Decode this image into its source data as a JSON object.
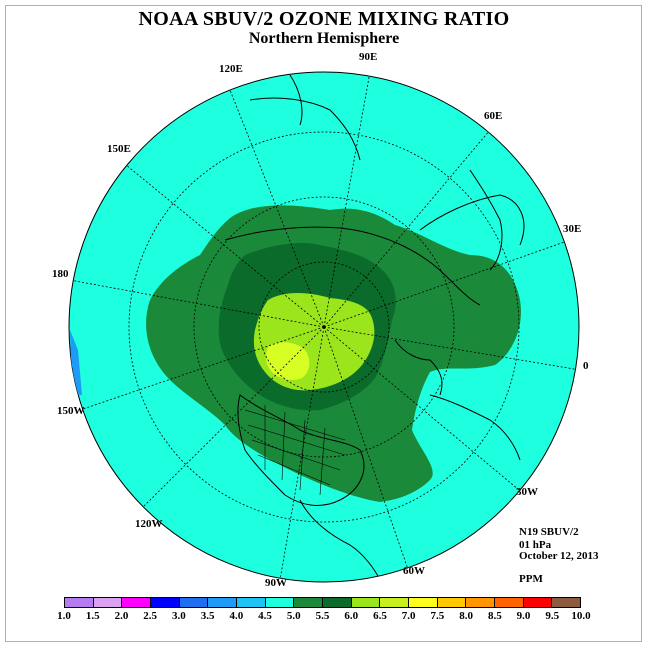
{
  "title": "NOAA SBUV/2 OZONE MIXING RATIO",
  "subtitle": "Northern Hemisphere",
  "meridian_labels": {
    "e90": "90E",
    "e120": "120E",
    "e60": "60E",
    "e150": "150E",
    "e30": "30E",
    "lon180": "180",
    "lon0": "0",
    "w150": "150W",
    "w30": "30W",
    "w120": "120W",
    "w60": "60W",
    "w90": "90W"
  },
  "info": {
    "instrument": "N19 SBUV/2",
    "level": "01 hPa",
    "date": "October 12, 2013",
    "units": "PPM"
  },
  "colors": {
    "background_cyan": "#1effdf",
    "green_5_5": "#1a8a3a",
    "green_6_0": "#0b6b2a",
    "yellowgreen_6_5": "#9be51c",
    "yellow_7_0": "#d8ff24"
  },
  "colorbar": {
    "ticks": [
      "1.0",
      "1.5",
      "2.0",
      "2.5",
      "3.0",
      "3.5",
      "4.0",
      "4.5",
      "5.0",
      "5.5",
      "6.0",
      "6.5",
      "7.0",
      "7.5",
      "8.0",
      "8.5",
      "9.0",
      "9.5",
      "10.0"
    ],
    "colors": [
      "#b47cf0",
      "#dca0f0",
      "#ff00ff",
      "#0000ff",
      "#1e6ef0",
      "#1e9bf5",
      "#1ec3f5",
      "#1effdf",
      "#1a8a3a",
      "#0b6b2a",
      "#9be51c",
      "#c8f01e",
      "#ffff1e",
      "#ffc800",
      "#ff9600",
      "#ff6400",
      "#ff0000",
      "#8c5a3c"
    ]
  }
}
